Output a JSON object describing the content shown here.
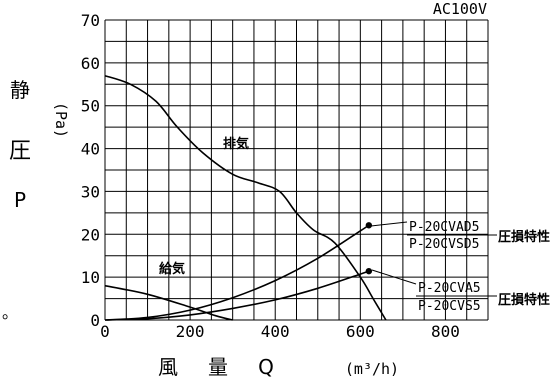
{
  "chart_data": {
    "type": "line",
    "title": "",
    "top_right_label": "AC100V",
    "ylabel_chars": [
      "静",
      "圧",
      "P"
    ],
    "yunit": "(Pa)",
    "xlabel_parts": [
      "風",
      "量",
      "Q"
    ],
    "xunit": "(m³/h)",
    "xlim": [
      0,
      900
    ],
    "ylim": [
      0,
      70
    ],
    "x_ticks": [
      "0",
      "200",
      "400",
      "600",
      "800"
    ],
    "y_ticks": [
      "0",
      "10",
      "20",
      "30",
      "40",
      "50",
      "60",
      "70"
    ],
    "grid": true,
    "series": [
      {
        "name": "排気",
        "x": [
          0,
          60,
          120,
          170,
          230,
          300,
          360,
          410,
          450,
          490,
          540,
          600,
          630,
          660
        ],
        "y": [
          57,
          55,
          51,
          45,
          39,
          34,
          32,
          30,
          25,
          21,
          18,
          10,
          5,
          0
        ]
      },
      {
        "name": "給気",
        "x": [
          0,
          100,
          200,
          260,
          300
        ],
        "y": [
          8,
          6,
          3,
          1,
          0
        ]
      },
      {
        "name": "P-20CVAD5 / P-20CVSD5",
        "x": [
          0,
          100,
          200,
          300,
          400,
          500,
          600,
          620
        ],
        "y": [
          0,
          0.6,
          2.3,
          5.2,
          9.2,
          14.4,
          20.8,
          22.1
        ]
      },
      {
        "name": "P-20CVA5 / P-20CVS5",
        "x": [
          0,
          100,
          200,
          300,
          400,
          500,
          600,
          620
        ],
        "y": [
          0,
          0.3,
          1.2,
          2.7,
          4.7,
          7.4,
          10.7,
          11.4
        ]
      }
    ],
    "model_labels": {
      "upper": [
        "P-20CVAD5",
        "P-20CVSD5"
      ],
      "lower": [
        "P-20CVA5",
        "P-20CVS5"
      ],
      "note": "圧損特性"
    },
    "stray_mark": "。"
  }
}
